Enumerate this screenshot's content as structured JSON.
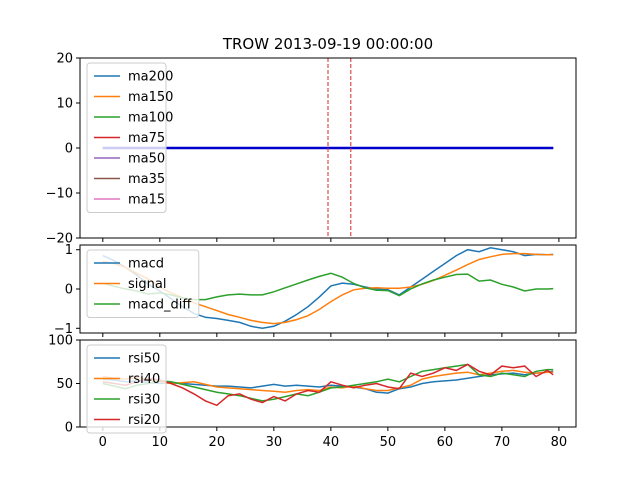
{
  "chart_data": [
    {
      "type": "line",
      "title": "TROW 2013-09-19 00:00:00",
      "xlim": [
        -4,
        83
      ],
      "ylim": [
        -20,
        20
      ],
      "yticks": [
        -20,
        -10,
        0,
        10,
        20
      ],
      "legend_position": "upper-left",
      "vlines": [
        39.5,
        43.5
      ],
      "vline_color": "#d62728",
      "series": [
        {
          "name": "ma200",
          "color": "#1f77b4",
          "x": [
            0,
            79
          ],
          "y": [
            0,
            0
          ]
        },
        {
          "name": "ma150",
          "color": "#ff7f0e",
          "x": [
            0,
            79
          ],
          "y": [
            0,
            0
          ]
        },
        {
          "name": "ma100",
          "color": "#2ca02c",
          "x": [
            0,
            79
          ],
          "y": [
            0,
            0
          ]
        },
        {
          "name": "ma75",
          "color": "#d62728",
          "x": [
            0,
            79
          ],
          "y": [
            0,
            0
          ]
        },
        {
          "name": "ma50",
          "color": "#9467bd",
          "x": [
            0,
            79
          ],
          "y": [
            0,
            0
          ]
        },
        {
          "name": "ma35",
          "color": "#8c564b",
          "x": [
            0,
            79
          ],
          "y": [
            0,
            0
          ]
        },
        {
          "name": "ma15",
          "color": "#e377c2",
          "x": [
            0,
            79
          ],
          "y": [
            0,
            0
          ]
        }
      ],
      "extra_lines": [
        {
          "color": "#0000cc",
          "x": [
            0,
            79
          ],
          "y": [
            0,
            0
          ],
          "width": 2.5
        }
      ]
    },
    {
      "type": "line",
      "xlim": [
        -4,
        83
      ],
      "ylim": [
        -1.12,
        1.12
      ],
      "yticks": [
        -1,
        0,
        1
      ],
      "legend_position": "upper-left",
      "series": [
        {
          "name": "macd",
          "color": "#1f77b4",
          "x": [
            0,
            2,
            4,
            6,
            8,
            10,
            12,
            14,
            16,
            18,
            20,
            22,
            24,
            26,
            28,
            30,
            32,
            34,
            36,
            38,
            40,
            42,
            44,
            46,
            48,
            50,
            52,
            54,
            56,
            58,
            60,
            62,
            64,
            66,
            68,
            70,
            72,
            74,
            76,
            78,
            79
          ],
          "y": [
            0.85,
            0.72,
            0.55,
            0.35,
            0.12,
            -0.05,
            -0.25,
            -0.45,
            -0.62,
            -0.72,
            -0.75,
            -0.8,
            -0.85,
            -0.95,
            -1.0,
            -0.95,
            -0.82,
            -0.65,
            -0.45,
            -0.2,
            0.08,
            0.15,
            0.12,
            0.05,
            0.0,
            -0.02,
            -0.15,
            0.05,
            0.25,
            0.45,
            0.65,
            0.85,
            1.0,
            0.95,
            1.05,
            1.0,
            0.95,
            0.85,
            0.88,
            0.87,
            0.88
          ]
        },
        {
          "name": "signal",
          "color": "#ff7f0e",
          "x": [
            0,
            2,
            4,
            6,
            8,
            10,
            12,
            14,
            16,
            18,
            20,
            22,
            24,
            26,
            28,
            30,
            32,
            34,
            36,
            38,
            40,
            42,
            44,
            46,
            48,
            50,
            52,
            54,
            56,
            58,
            60,
            62,
            64,
            66,
            68,
            70,
            72,
            74,
            76,
            78,
            79
          ],
          "y": [
            0.7,
            0.65,
            0.55,
            0.4,
            0.25,
            0.05,
            -0.1,
            -0.22,
            -0.35,
            -0.45,
            -0.55,
            -0.65,
            -0.72,
            -0.8,
            -0.85,
            -0.88,
            -0.85,
            -0.78,
            -0.68,
            -0.52,
            -0.32,
            -0.15,
            -0.02,
            0.02,
            0.03,
            0.02,
            0.02,
            0.05,
            0.12,
            0.22,
            0.35,
            0.48,
            0.62,
            0.75,
            0.82,
            0.88,
            0.9,
            0.9,
            0.88,
            0.87,
            0.87
          ]
        },
        {
          "name": "macd_diff",
          "color": "#2ca02c",
          "x": [
            0,
            2,
            4,
            6,
            8,
            10,
            12,
            14,
            16,
            18,
            20,
            22,
            24,
            26,
            28,
            30,
            32,
            34,
            36,
            38,
            40,
            42,
            44,
            46,
            48,
            50,
            52,
            54,
            56,
            58,
            60,
            62,
            64,
            66,
            68,
            70,
            72,
            74,
            76,
            78,
            79
          ],
          "y": [
            0.15,
            0.07,
            0.0,
            -0.05,
            -0.13,
            -0.1,
            -0.15,
            -0.23,
            -0.27,
            -0.27,
            -0.2,
            -0.15,
            -0.13,
            -0.15,
            -0.15,
            -0.07,
            0.03,
            0.13,
            0.23,
            0.32,
            0.4,
            0.3,
            0.14,
            0.03,
            -0.03,
            -0.04,
            -0.17,
            0.0,
            0.13,
            0.23,
            0.3,
            0.37,
            0.38,
            0.2,
            0.23,
            0.12,
            0.05,
            -0.05,
            -0.0,
            0.0,
            0.01
          ]
        }
      ]
    },
    {
      "type": "line",
      "xlim": [
        -4,
        83
      ],
      "ylim": [
        0,
        100
      ],
      "yticks": [
        0,
        50,
        100
      ],
      "xticks": [
        0,
        10,
        20,
        30,
        40,
        50,
        60,
        70,
        80
      ],
      "legend_position": "upper-left",
      "series": [
        {
          "name": "rsi50",
          "color": "#1f77b4",
          "x": [
            0,
            2,
            4,
            6,
            8,
            10,
            12,
            14,
            16,
            18,
            20,
            22,
            24,
            26,
            28,
            30,
            32,
            34,
            36,
            38,
            40,
            42,
            44,
            46,
            48,
            50,
            52,
            54,
            56,
            58,
            60,
            62,
            64,
            66,
            68,
            70,
            72,
            74,
            76,
            78,
            79
          ],
          "y": [
            55,
            54,
            52,
            53,
            51,
            50,
            51,
            50,
            49,
            48,
            47,
            47,
            46,
            45,
            47,
            49,
            47,
            48,
            47,
            46,
            48,
            47,
            46,
            44,
            40,
            39,
            44,
            46,
            50,
            52,
            53,
            54,
            56,
            58,
            60,
            61,
            62,
            60,
            62,
            63,
            64
          ]
        },
        {
          "name": "rsi40",
          "color": "#ff7f0e",
          "x": [
            0,
            2,
            4,
            6,
            8,
            10,
            12,
            14,
            16,
            18,
            20,
            22,
            24,
            26,
            28,
            30,
            32,
            34,
            36,
            38,
            40,
            42,
            44,
            46,
            48,
            50,
            52,
            54,
            56,
            58,
            60,
            62,
            64,
            66,
            68,
            70,
            72,
            74,
            76,
            78,
            79
          ],
          "y": [
            58,
            56,
            55,
            57,
            54,
            52,
            50,
            51,
            52,
            49,
            46,
            45,
            44,
            43,
            42,
            41,
            40,
            42,
            43,
            42,
            46,
            45,
            47,
            44,
            42,
            42,
            45,
            48,
            55,
            58,
            60,
            62,
            63,
            60,
            62,
            64,
            65,
            63,
            62,
            63,
            63
          ]
        },
        {
          "name": "rsi30",
          "color": "#2ca02c",
          "x": [
            0,
            2,
            4,
            6,
            8,
            10,
            12,
            14,
            16,
            18,
            20,
            22,
            24,
            26,
            28,
            30,
            32,
            34,
            36,
            38,
            40,
            42,
            44,
            46,
            48,
            50,
            52,
            54,
            56,
            58,
            60,
            62,
            64,
            66,
            68,
            70,
            72,
            74,
            76,
            78,
            79
          ],
          "y": [
            50,
            47,
            44,
            48,
            50,
            53,
            52,
            49,
            46,
            43,
            40,
            38,
            36,
            33,
            30,
            32,
            35,
            38,
            36,
            40,
            45,
            46,
            48,
            50,
            52,
            55,
            52,
            58,
            64,
            66,
            68,
            70,
            72,
            60,
            58,
            62,
            60,
            58,
            64,
            66,
            66
          ]
        },
        {
          "name": "rsi20",
          "color": "#d62728",
          "x": [
            0,
            2,
            4,
            6,
            8,
            10,
            12,
            14,
            16,
            18,
            20,
            22,
            24,
            26,
            28,
            30,
            32,
            34,
            36,
            38,
            40,
            42,
            44,
            46,
            48,
            50,
            52,
            54,
            56,
            58,
            60,
            62,
            64,
            66,
            68,
            70,
            72,
            74,
            76,
            78,
            79
          ],
          "y": [
            52,
            50,
            48,
            52,
            56,
            54,
            50,
            45,
            38,
            30,
            25,
            36,
            38,
            32,
            28,
            35,
            30,
            38,
            42,
            40,
            52,
            48,
            45,
            48,
            50,
            46,
            44,
            62,
            58,
            62,
            68,
            65,
            72,
            64,
            60,
            70,
            68,
            70,
            58,
            65,
            60
          ]
        }
      ]
    }
  ]
}
